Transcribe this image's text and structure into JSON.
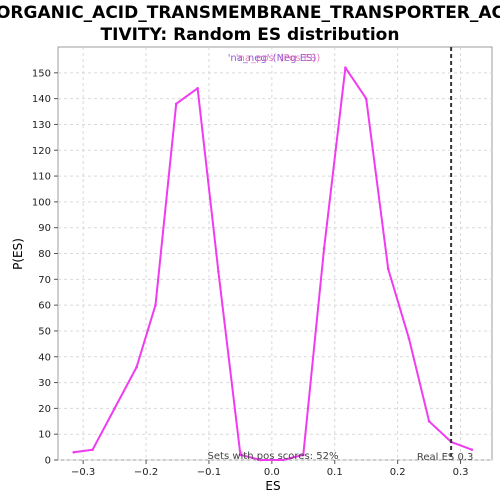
{
  "chart_data": {
    "type": "line",
    "title_line1": "ORGANIC_ACID_TRANSMEMBRANE_TRANSPORTER_AC",
    "title_line2": "TIVITY: Random ES distribution",
    "xlabel": "ES",
    "ylabel": "P(ES)",
    "xlim": [
      -0.34,
      0.35
    ],
    "ylim": [
      0,
      160
    ],
    "x_ticks": [
      -0.3,
      -0.2,
      -0.1,
      0.0,
      0.1,
      0.2,
      0.3
    ],
    "x_tick_labels": [
      "−0.3",
      "−0.2",
      "−0.1",
      "0.0",
      "0.1",
      "0.2",
      "0.3"
    ],
    "y_ticks": [
      0,
      10,
      20,
      30,
      40,
      50,
      60,
      70,
      80,
      90,
      100,
      110,
      120,
      130,
      140,
      150
    ],
    "grid": true,
    "legend": {
      "placement": "top-center",
      "entries": [
        {
          "label": "'na_neg' (Neg ES)",
          "color": "#7b3fd4"
        },
        {
          "label": "'na_pos' (Pos ES)",
          "color": "#e0409a"
        }
      ]
    },
    "series": [
      {
        "color": "#f03cf0",
        "x": [
          -0.315,
          -0.285,
          -0.25,
          -0.215,
          -0.185,
          -0.152,
          -0.118,
          -0.085,
          -0.05,
          -0.018,
          0.018,
          0.05,
          0.083,
          0.117,
          0.15,
          0.185,
          0.218,
          0.25,
          0.285,
          0.318
        ],
        "y": [
          3,
          4,
          20,
          36,
          60,
          138,
          144,
          73,
          2,
          0,
          0,
          2,
          82,
          152,
          140,
          74,
          47,
          15,
          7,
          4
        ]
      }
    ],
    "real_es": {
      "x": 0.285,
      "label": "Real ES 0.3"
    },
    "pos_scores_note": "Sets with pos scores: 52%"
  }
}
